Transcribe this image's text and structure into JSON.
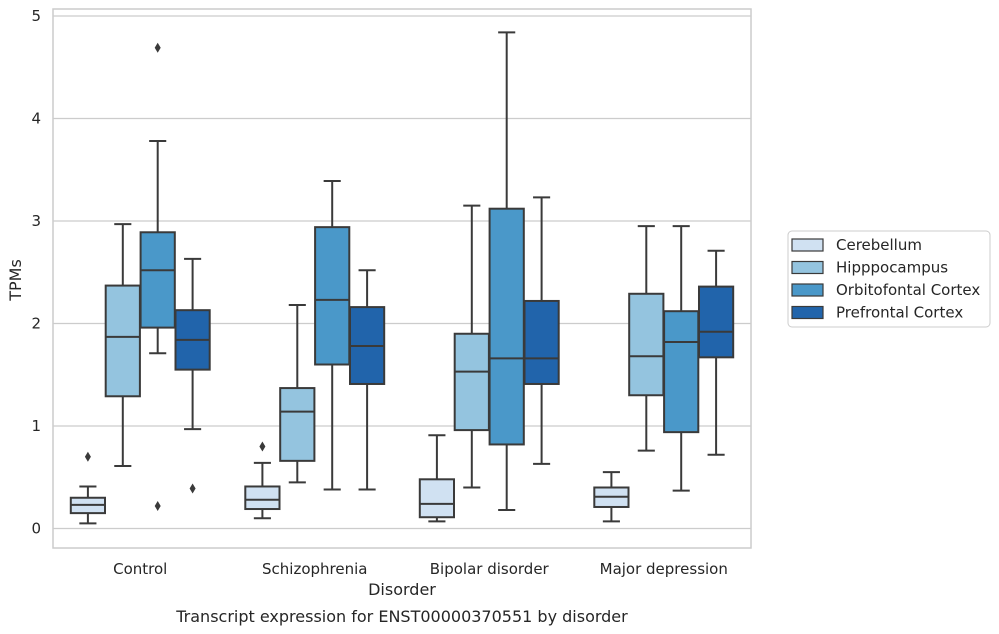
{
  "chart_data": {
    "type": "box",
    "title": "",
    "caption": "Transcript expression for ENST00000370551 by disorder",
    "xlabel": "Disorder",
    "ylabel": "TPMs",
    "ylim": [
      -0.18,
      5.08
    ],
    "yticks": [
      0,
      1,
      2,
      3,
      4,
      5
    ],
    "grid": true,
    "legend_position": "right",
    "categories": [
      "Control",
      "Schizophrenia",
      "Bipolar disorder",
      "Major depression"
    ],
    "series": [
      {
        "name": "Cerebellum",
        "color": "#d0e1f2",
        "boxes": [
          {
            "whislo": 0.05,
            "q1": 0.15,
            "med": 0.23,
            "q3": 0.3,
            "whishi": 0.41,
            "fliers": [
              0.7
            ]
          },
          {
            "whislo": 0.1,
            "q1": 0.19,
            "med": 0.28,
            "q3": 0.41,
            "whishi": 0.64,
            "fliers": [
              0.8
            ]
          },
          {
            "whislo": 0.07,
            "q1": 0.11,
            "med": 0.24,
            "q3": 0.48,
            "whishi": 0.91,
            "fliers": []
          },
          {
            "whislo": 0.07,
            "q1": 0.21,
            "med": 0.31,
            "q3": 0.4,
            "whishi": 0.55,
            "fliers": []
          }
        ]
      },
      {
        "name": "Hipppocampus",
        "color": "#94c4df",
        "boxes": [
          {
            "whislo": 0.61,
            "q1": 1.29,
            "med": 1.87,
            "q3": 2.37,
            "whishi": 2.97,
            "fliers": []
          },
          {
            "whislo": 0.45,
            "q1": 0.66,
            "med": 1.14,
            "q3": 1.37,
            "whishi": 2.18,
            "fliers": []
          },
          {
            "whislo": 0.4,
            "q1": 0.96,
            "med": 1.53,
            "q3": 1.9,
            "whishi": 3.15,
            "fliers": []
          },
          {
            "whislo": 0.76,
            "q1": 1.3,
            "med": 1.68,
            "q3": 2.29,
            "whishi": 2.95,
            "fliers": []
          }
        ]
      },
      {
        "name": "Orbitofontal Cortex",
        "color": "#4a98c9",
        "boxes": [
          {
            "whislo": 1.71,
            "q1": 1.96,
            "med": 2.52,
            "q3": 2.89,
            "whishi": 3.78,
            "fliers": [
              4.69,
              0.22
            ]
          },
          {
            "whislo": 0.38,
            "q1": 1.6,
            "med": 2.23,
            "q3": 2.94,
            "whishi": 3.39,
            "fliers": []
          },
          {
            "whislo": 0.18,
            "q1": 0.82,
            "med": 1.66,
            "q3": 3.12,
            "whishi": 4.84,
            "fliers": []
          },
          {
            "whislo": 0.37,
            "q1": 0.94,
            "med": 1.82,
            "q3": 2.12,
            "whishi": 2.95,
            "fliers": []
          }
        ]
      },
      {
        "name": "Prefrontal Cortex",
        "color": "#2164ab",
        "boxes": [
          {
            "whislo": 0.97,
            "q1": 1.55,
            "med": 1.84,
            "q3": 2.13,
            "whishi": 2.63,
            "fliers": [
              0.39
            ]
          },
          {
            "whislo": 0.38,
            "q1": 1.41,
            "med": 1.78,
            "q3": 2.16,
            "whishi": 2.52,
            "fliers": []
          },
          {
            "whislo": 0.63,
            "q1": 1.41,
            "med": 1.66,
            "q3": 2.22,
            "whishi": 3.23,
            "fliers": []
          },
          {
            "whislo": 0.72,
            "q1": 1.67,
            "med": 1.92,
            "q3": 2.36,
            "whishi": 2.71,
            "fliers": []
          }
        ]
      }
    ]
  },
  "colors": {
    "edge": "#3a3a3a",
    "grid": "#cccccc",
    "frame": "#cccccc",
    "text": "#262626"
  }
}
